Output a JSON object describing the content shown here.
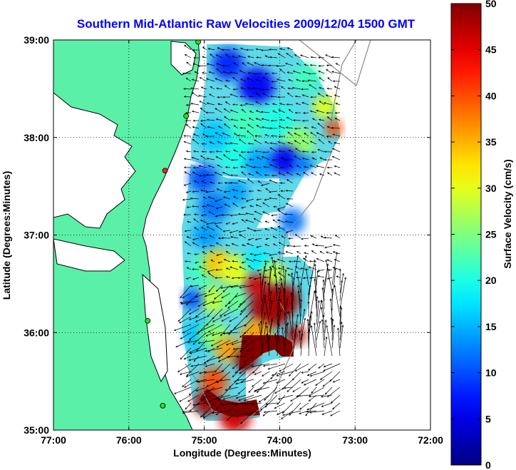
{
  "title": "Southern Mid-Atlantic Raw Velocities 2009/12/04 1500 GMT",
  "map": {
    "xlabel": "Longitude (Degrees:Minutes)",
    "ylabel": "Latitude (Degrees:Minutes)",
    "lon_range": [
      -77,
      -72
    ],
    "lat_range": [
      35,
      39
    ],
    "x_ticks": [
      {
        "value": -77,
        "label": "77:00"
      },
      {
        "value": -76,
        "label": "76:00"
      },
      {
        "value": -75,
        "label": "75:00"
      },
      {
        "value": -74,
        "label": "74:00"
      },
      {
        "value": -73,
        "label": "73:00"
      },
      {
        "value": -72,
        "label": "72:00"
      }
    ],
    "y_ticks": [
      {
        "value": 39,
        "label": "39:00"
      },
      {
        "value": 38,
        "label": "38:00"
      },
      {
        "value": 37,
        "label": "37:00"
      },
      {
        "value": 36,
        "label": "36:00"
      },
      {
        "value": 35,
        "label": "35:00"
      }
    ],
    "grid": "dotted",
    "land_color": "#5bf0a8",
    "coastline_color": "#000000",
    "vector_color": "#000000",
    "stations": [
      {
        "lon": -75.08,
        "lat": 38.98,
        "color": "#22dd22"
      },
      {
        "lon": -75.24,
        "lat": 38.22,
        "color": "#22dd22"
      },
      {
        "lon": -75.52,
        "lat": 37.66,
        "color": "#ee2222"
      },
      {
        "lon": -75.75,
        "lat": 36.12,
        "color": "#22dd22"
      },
      {
        "lon": -75.55,
        "lat": 35.25,
        "color": "#22dd22"
      }
    ]
  },
  "colorbar": {
    "label": "Surface Velocity (cm/s)",
    "min": 0,
    "max": 50,
    "ticks": [
      "0",
      "5",
      "10",
      "15",
      "20",
      "25",
      "30",
      "35",
      "40",
      "45",
      "50"
    ],
    "colormap": "jet"
  }
}
